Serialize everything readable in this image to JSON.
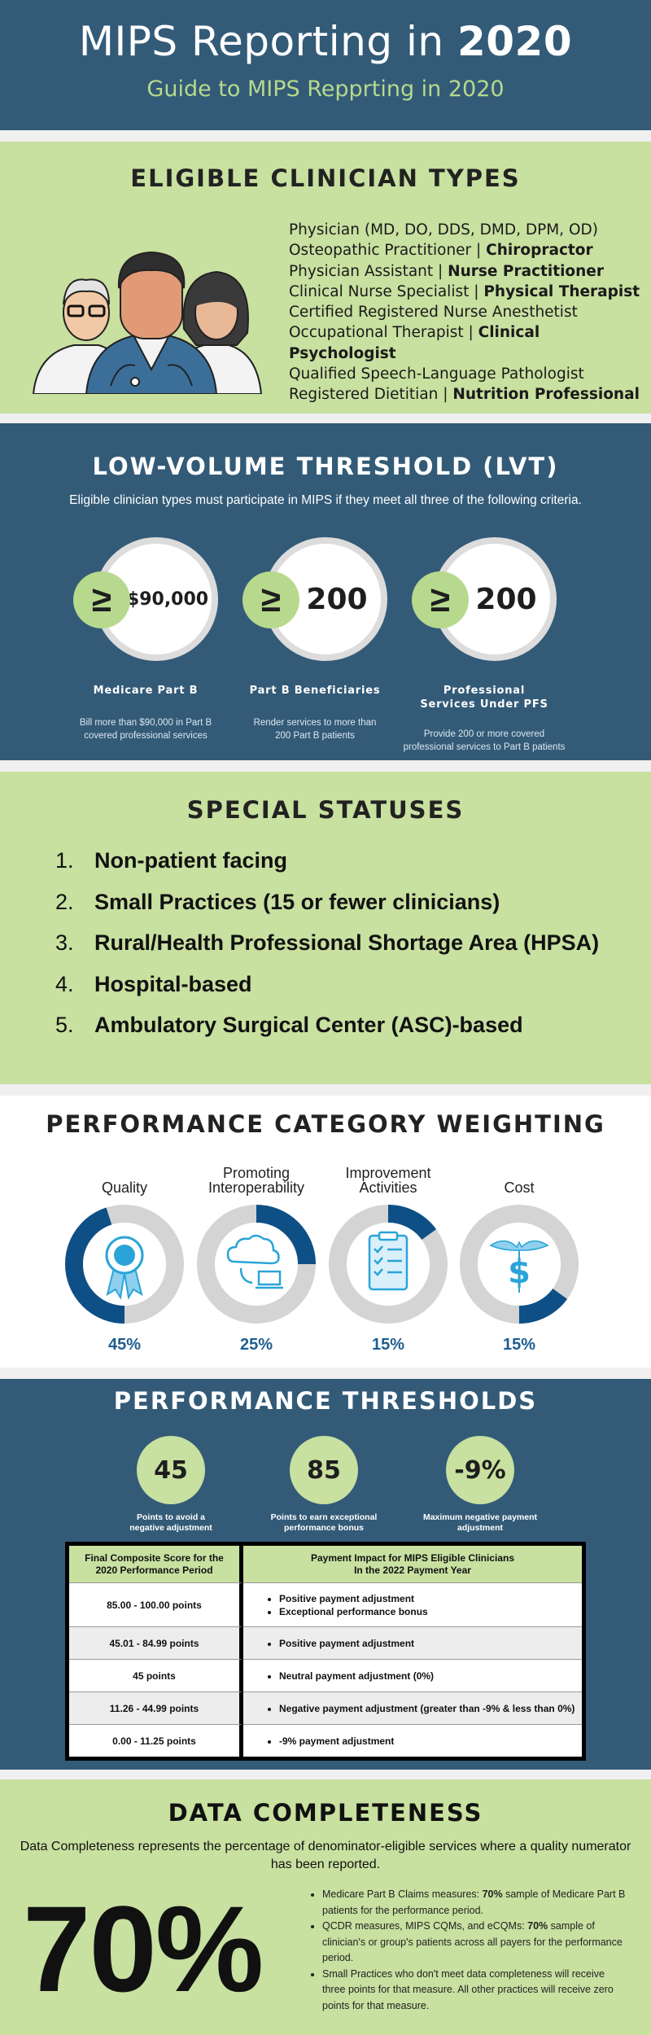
{
  "header": {
    "title_prefix": "MIPS Reporting in ",
    "title_year": "2020",
    "subtitle": "Guide to MIPS Repprting in 2020"
  },
  "eligible": {
    "title": "ELIGIBLE CLINICIAN TYPES",
    "lines": [
      {
        "a": "Physician (MD, DO, DDS, DMD, DPM, OD)",
        "b": ""
      },
      {
        "a": "Osteopathic Practitioner | ",
        "b": "Chiropractor"
      },
      {
        "a": "Physician Assistant | ",
        "b": "Nurse Practitioner"
      },
      {
        "a": "Clinical Nurse Specialist | ",
        "b": "Physical Therapist"
      },
      {
        "a": "Certified Registered Nurse Anesthetist",
        "b": ""
      },
      {
        "a": "Occupational Therapist | ",
        "b": "Clinical Psychologist"
      },
      {
        "a": "Qualified Speech-Language Pathologist",
        "b": ""
      },
      {
        "a": "Registered Dietitian | ",
        "b": "Nutrition Professional"
      }
    ]
  },
  "lvt": {
    "title": "LOW-VOLUME THRESHOLD (LVT)",
    "intro": "Eligible clinician types must participate in MIPS if they meet all three of the following criteria.",
    "items": [
      {
        "symbol": "≥",
        "value": "$90,000",
        "label": "Medicare Part B",
        "desc1": "Bill more than $90,000 in Part B",
        "desc2": "covered professional services"
      },
      {
        "symbol": "≥",
        "value": "200",
        "label": "Part B Beneficiaries",
        "desc1": "Render services to more than",
        "desc2": "200 Part B patients"
      },
      {
        "symbol": "≥",
        "value": "200",
        "label": "Professional Services Under PFS",
        "desc1": "Provide 200 or more covered",
        "desc2": "professional services to Part B patients"
      }
    ]
  },
  "special": {
    "title": "SPECIAL STATUSES",
    "items": [
      {
        "num": "1.",
        "text": "Non-patient facing"
      },
      {
        "num": "2.",
        "text": "Small Practices (15 or fewer clinicians)"
      },
      {
        "num": "3.",
        "text": "Rural/Health Professional Shortage Area (HPSA)"
      },
      {
        "num": "4.",
        "text": "Hospital-based"
      },
      {
        "num": "5.",
        "text": "Ambulatory Surgical Center (ASC)-based"
      }
    ]
  },
  "weighting": {
    "title": "PERFORMANCE CATEGORY WEIGHTING",
    "ring_color": "#0e4f86",
    "track_color": "#d4d4d4",
    "items": [
      {
        "label": "Quality",
        "pct_text": "45%",
        "fraction": 0.45,
        "icon": "award-ribbon-icon"
      },
      {
        "label": "Promoting Interoperability",
        "pct_text": "25%",
        "fraction": 0.25,
        "icon": "cloud-laptop-icon"
      },
      {
        "label": "Improvement Activities",
        "pct_text": "15%",
        "fraction": 0.15,
        "icon": "clipboard-checklist-icon"
      },
      {
        "label": "Cost",
        "pct_text": "15%",
        "fraction": 0.15,
        "icon": "caduceus-dollar-icon"
      }
    ]
  },
  "thresholds": {
    "title": "PERFORMANCE THRESHOLDS",
    "items": [
      {
        "value": "45",
        "label1": "Points to avoid a",
        "label2": "negative adjustment"
      },
      {
        "value": "85",
        "label1": "Points to earn exceptional",
        "label2": "performance bonus"
      },
      {
        "value": "-9%",
        "label1": "Maximum negative payment",
        "label2": "adjustment"
      }
    ],
    "table": {
      "h1a": "Final Composite Score for the",
      "h1b": "2020 Performance Period",
      "h2a": "Payment Impact for MIPS Eligible Clinicians",
      "h2b": "In the 2022 Payment Year",
      "rows": [
        {
          "score": "85.00 - 100.00 points",
          "impacts": [
            "Positive payment adjustment",
            "Exceptional performance bonus"
          ]
        },
        {
          "score": "45.01 - 84.99 points",
          "impacts": [
            "Positive payment adjustment"
          ]
        },
        {
          "score": "45 points",
          "impacts": [
            "Neutral payment adjustment (0%)"
          ]
        },
        {
          "score": "11.26 - 44.99 points",
          "impacts": [
            "Negative payment adjustment (greater than -9% & less than 0%)"
          ]
        },
        {
          "score": "0.00 - 11.25 points",
          "impacts": [
            "-9% payment adjustment"
          ]
        }
      ]
    }
  },
  "completeness": {
    "title": "DATA COMPLETENESS",
    "intro": "Data Completeness represents the percentage of denominator-eligible services where a quality numerator has been reported.",
    "big": "70%",
    "bullets": [
      {
        "a": "Medicare Part B Claims measures: ",
        "b": "70%",
        "c": " sample of Medicare Part B patients for the performance period."
      },
      {
        "a": "QCDR measures, MIPS CQMs, and eCQMs: ",
        "b": "70%",
        "c": " sample of clinician's or group's patients across all payers for the performance period."
      },
      {
        "a": "Small Practices who don't meet data completeness will receive three points for that measure. All other practices will receive zero points for that measure.",
        "b": "",
        "c": ""
      }
    ]
  }
}
